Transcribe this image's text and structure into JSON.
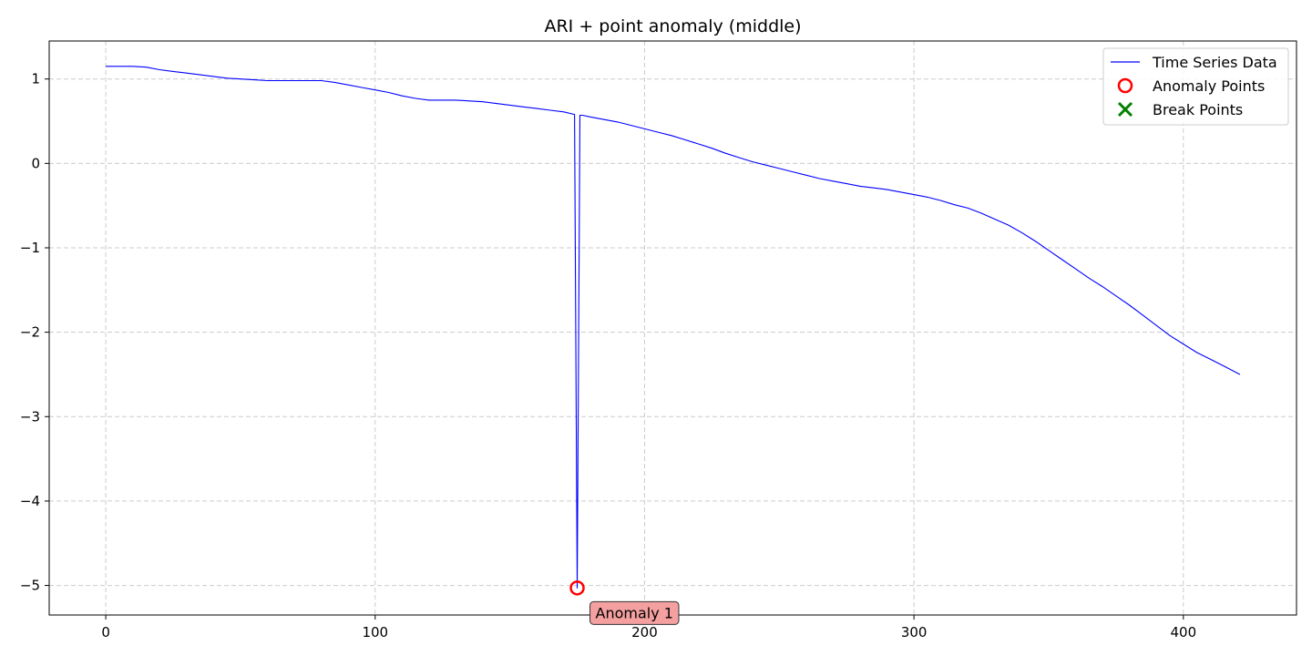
{
  "chart_data": {
    "type": "line",
    "title": "ARI + point anomaly (middle)",
    "xlabel": "",
    "ylabel": "",
    "xlim": [
      -21,
      442
    ],
    "ylim": [
      -5.35,
      1.45
    ],
    "xticks": [
      0,
      100,
      200,
      300,
      400
    ],
    "xtick_labels": [
      "0",
      "100",
      "200",
      "300",
      "400"
    ],
    "yticks": [
      1,
      0,
      -1,
      -2,
      -3,
      -4,
      -5
    ],
    "ytick_labels": [
      "1",
      "0",
      "−1",
      "−2",
      "−3",
      "−4",
      "−5"
    ],
    "grid": true,
    "legend_position": "top-right",
    "series": [
      {
        "name": "Time Series Data",
        "color": "#0000ff",
        "x": [
          0,
          5,
          10,
          15,
          20,
          25,
          30,
          35,
          40,
          45,
          50,
          55,
          60,
          65,
          70,
          75,
          80,
          85,
          90,
          95,
          100,
          105,
          110,
          115,
          120,
          125,
          130,
          135,
          140,
          145,
          150,
          155,
          160,
          165,
          170,
          174,
          175,
          176,
          177,
          180,
          185,
          190,
          195,
          200,
          205,
          210,
          215,
          220,
          225,
          230,
          235,
          240,
          245,
          250,
          255,
          260,
          265,
          270,
          275,
          280,
          285,
          290,
          295,
          300,
          305,
          310,
          315,
          320,
          325,
          330,
          335,
          340,
          345,
          350,
          355,
          360,
          365,
          370,
          375,
          380,
          385,
          390,
          395,
          400,
          405,
          410,
          415,
          421
        ],
        "y": [
          1.15,
          1.15,
          1.15,
          1.14,
          1.11,
          1.09,
          1.07,
          1.05,
          1.03,
          1.01,
          1.0,
          0.99,
          0.98,
          0.98,
          0.98,
          0.98,
          0.98,
          0.96,
          0.93,
          0.9,
          0.87,
          0.84,
          0.8,
          0.77,
          0.75,
          0.75,
          0.75,
          0.74,
          0.73,
          0.71,
          0.69,
          0.67,
          0.65,
          0.63,
          0.61,
          0.58,
          -5.03,
          0.57,
          0.57,
          0.55,
          0.52,
          0.49,
          0.45,
          0.41,
          0.37,
          0.33,
          0.28,
          0.23,
          0.18,
          0.12,
          0.07,
          0.02,
          -0.02,
          -0.06,
          -0.1,
          -0.14,
          -0.18,
          -0.21,
          -0.24,
          -0.27,
          -0.29,
          -0.31,
          -0.34,
          -0.37,
          -0.4,
          -0.44,
          -0.49,
          -0.53,
          -0.59,
          -0.66,
          -0.73,
          -0.82,
          -0.92,
          -1.03,
          -1.14,
          -1.25,
          -1.36,
          -1.46,
          -1.57,
          -1.68,
          -1.8,
          -1.92,
          -2.04,
          -2.14,
          -2.24,
          -2.32,
          -2.4,
          -2.5
        ]
      }
    ],
    "anomaly_points": {
      "name": "Anomaly Points",
      "color": "#ff0000",
      "x": [
        175
      ],
      "y": [
        -5.03
      ]
    },
    "break_points": {
      "name": "Break Points",
      "color": "#008000",
      "x": [],
      "y": []
    },
    "annotations": [
      {
        "text": "Anomaly 1",
        "x": 175,
        "y": -5.03,
        "box_color": "#f4a0a0"
      }
    ]
  }
}
